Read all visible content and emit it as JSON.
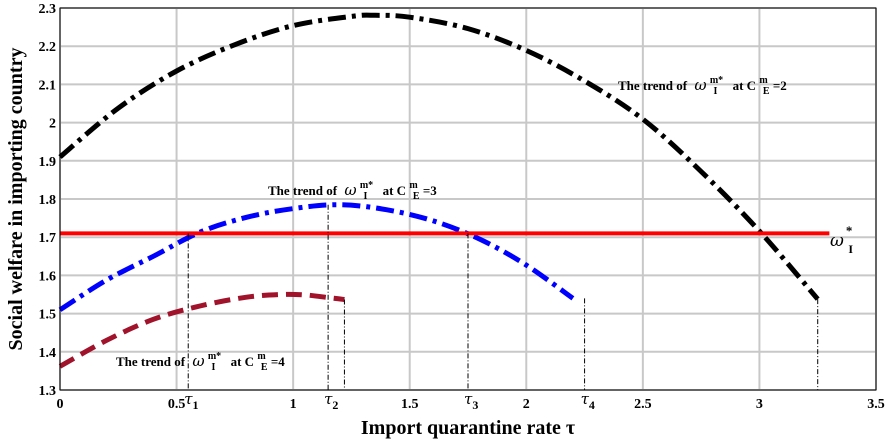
{
  "chart_data": {
    "type": "line",
    "xlabel": "Import quarantine rate τ",
    "ylabel": "Social welfare in importing country",
    "xlim": [
      0,
      3.5
    ],
    "ylim": [
      1.3,
      2.3
    ],
    "x_ticks": [
      "0",
      "0.5",
      "1",
      "1.5",
      "2",
      "2.5",
      "3",
      "3.5"
    ],
    "y_ticks": [
      "1.3",
      "1.4",
      "1.5",
      "1.6",
      "1.7",
      "1.8",
      "1.9",
      "2",
      "2.1",
      "2.2",
      "2.3"
    ],
    "grid": true,
    "series": [
      {
        "color": "#000000",
        "style": "dash-dot",
        "x": [
          0,
          0.25,
          0.5,
          0.75,
          1.0,
          1.25,
          1.35,
          1.5,
          1.75,
          2.0,
          2.25,
          2.5,
          2.75,
          3.0,
          3.25
        ],
        "y": [
          1.91,
          2.038,
          2.135,
          2.204,
          2.254,
          2.278,
          2.281,
          2.276,
          2.246,
          2.189,
          2.109,
          2.009,
          1.872,
          1.716,
          1.538
        ]
      },
      {
        "color": "#0000ff",
        "style": "dash-dot",
        "x": [
          0,
          0.2,
          0.4,
          0.6,
          0.8,
          1.0,
          1.2,
          1.4,
          1.6,
          1.8,
          2.0,
          2.2
        ],
        "y": [
          1.51,
          1.588,
          1.65,
          1.713,
          1.752,
          1.775,
          1.785,
          1.772,
          1.743,
          1.695,
          1.627,
          1.54
        ]
      },
      {
        "color": "#a0132b",
        "style": "dashed",
        "x": [
          0,
          0.2,
          0.4,
          0.6,
          0.8,
          0.95,
          1.05,
          1.15,
          1.22
        ],
        "y": [
          1.362,
          1.43,
          1.485,
          1.52,
          1.543,
          1.55,
          1.549,
          1.542,
          1.537
        ]
      },
      {
        "color": "#ff0000",
        "style": "solid",
        "x": [
          0,
          3.3
        ],
        "y": [
          1.71,
          1.71
        ]
      }
    ],
    "reference_markers": [
      {
        "label": "τ",
        "sub": "1",
        "x": 0.55,
        "y": 1.71
      },
      {
        "label": "τ",
        "sub": "2",
        "x": 1.15,
        "y": 1.785
      },
      {
        "label": "τ",
        "sub": "3",
        "x": 1.75,
        "y": 1.71
      },
      {
        "label": "τ",
        "sub": "4",
        "x": 2.25,
        "y": 1.54
      },
      {
        "label": "",
        "sub": "",
        "x": 1.22,
        "y": 1.537
      },
      {
        "label": "",
        "sub": "",
        "x": 3.25,
        "y": 1.538
      }
    ],
    "annotations": [
      {
        "prefix": "The trend of",
        "symbol": "ω",
        "sub": "I",
        "sup": "m*",
        "suffix": "at C",
        "c_sub": "E",
        "c_sup": "m",
        "value": "=2"
      },
      {
        "prefix": "The trend of",
        "symbol": "ω",
        "sub": "I",
        "sup": "m*",
        "suffix": "at C",
        "c_sub": "E",
        "c_sup": "m",
        "value": "=3"
      },
      {
        "prefix": "The trend of",
        "symbol": "ω",
        "sub": "I",
        "sup": "m*",
        "suffix": "at C",
        "c_sub": "E",
        "c_sup": "m",
        "value": "=4"
      }
    ],
    "omega_label": {
      "symbol": "ω",
      "sub": "I",
      "sup": "*"
    }
  }
}
